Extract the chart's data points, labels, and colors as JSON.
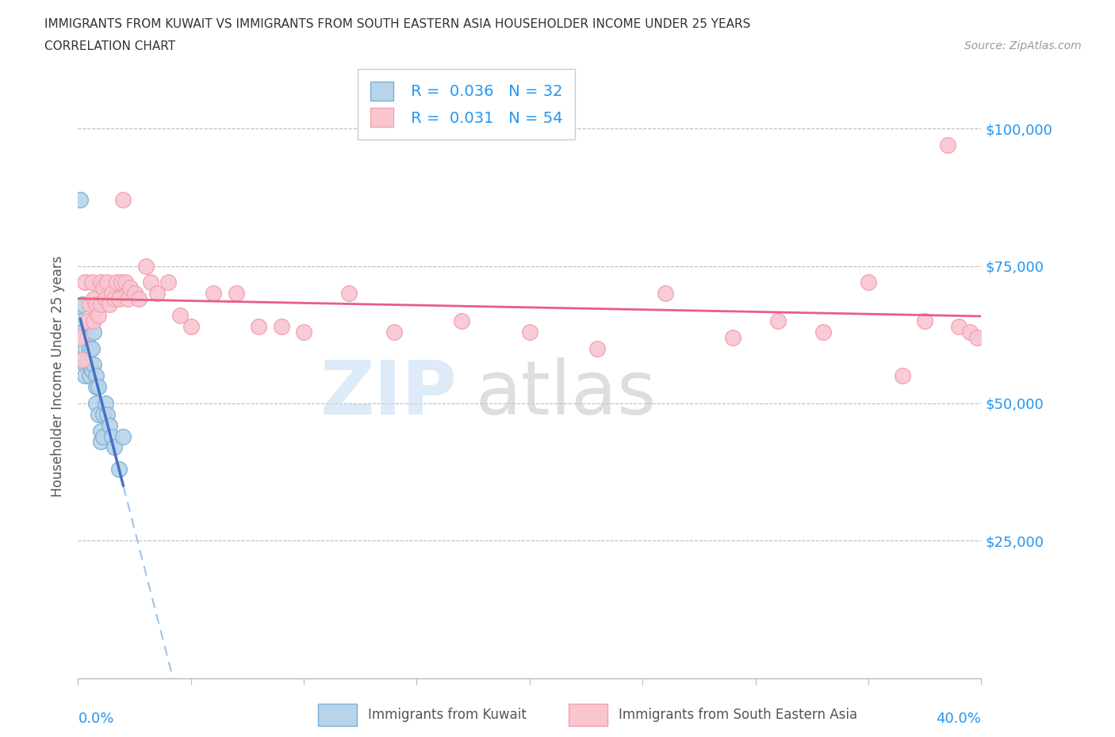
{
  "title_line1": "IMMIGRANTS FROM KUWAIT VS IMMIGRANTS FROM SOUTH EASTERN ASIA HOUSEHOLDER INCOME UNDER 25 YEARS",
  "title_line2": "CORRELATION CHART",
  "source": "Source: ZipAtlas.com",
  "ylabel": "Householder Income Under 25 years",
  "r_kuwait": 0.036,
  "n_kuwait": 32,
  "r_sea": 0.031,
  "n_sea": 54,
  "color_kuwait_fill": "#b8d4ea",
  "color_kuwait_edge": "#7ab0d4",
  "color_sea_fill": "#f9c6d0",
  "color_sea_edge": "#f0a0b0",
  "color_kuwait_line": "#4472c4",
  "color_sea_line": "#e85d8a",
  "color_kuwait_dashed": "#9ec4e8",
  "ytick_values": [
    25000,
    50000,
    75000,
    100000
  ],
  "xmin": 0.0,
  "xmax": 0.4,
  "ymin": 0,
  "ymax": 110000,
  "kuwait_x": [
    0.001,
    0.001,
    0.002,
    0.002,
    0.003,
    0.003,
    0.003,
    0.004,
    0.004,
    0.005,
    0.005,
    0.005,
    0.006,
    0.006,
    0.007,
    0.007,
    0.008,
    0.008,
    0.008,
    0.009,
    0.009,
    0.01,
    0.01,
    0.011,
    0.011,
    0.012,
    0.013,
    0.014,
    0.015,
    0.016,
    0.018,
    0.02
  ],
  "kuwait_y": [
    87000,
    65000,
    68000,
    63000,
    60000,
    57000,
    55000,
    62000,
    58000,
    60000,
    57000,
    55000,
    60000,
    56000,
    63000,
    57000,
    55000,
    53000,
    50000,
    53000,
    48000,
    45000,
    43000,
    48000,
    44000,
    50000,
    48000,
    46000,
    44000,
    42000,
    38000,
    44000
  ],
  "sea_x": [
    0.001,
    0.002,
    0.003,
    0.004,
    0.005,
    0.006,
    0.007,
    0.007,
    0.008,
    0.009,
    0.01,
    0.01,
    0.011,
    0.012,
    0.013,
    0.014,
    0.015,
    0.016,
    0.017,
    0.018,
    0.019,
    0.02,
    0.021,
    0.022,
    0.023,
    0.025,
    0.027,
    0.03,
    0.032,
    0.035,
    0.04,
    0.045,
    0.05,
    0.06,
    0.07,
    0.08,
    0.09,
    0.1,
    0.12,
    0.14,
    0.17,
    0.2,
    0.23,
    0.26,
    0.29,
    0.31,
    0.33,
    0.35,
    0.365,
    0.375,
    0.385,
    0.39,
    0.395,
    0.398
  ],
  "sea_y": [
    62000,
    58000,
    72000,
    65000,
    68000,
    72000,
    69000,
    65000,
    68000,
    66000,
    72000,
    68000,
    71000,
    69000,
    72000,
    68000,
    70000,
    69000,
    72000,
    69000,
    72000,
    87000,
    72000,
    69000,
    71000,
    70000,
    69000,
    75000,
    72000,
    70000,
    72000,
    66000,
    64000,
    70000,
    70000,
    64000,
    64000,
    63000,
    70000,
    63000,
    65000,
    63000,
    60000,
    70000,
    62000,
    65000,
    63000,
    72000,
    55000,
    65000,
    97000,
    64000,
    63000,
    62000
  ]
}
